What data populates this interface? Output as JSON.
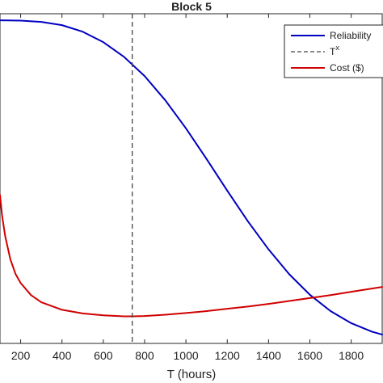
{
  "chart_data": {
    "type": "line",
    "title": "Block 5",
    "xlabel": "T (hours)",
    "ylabel": "",
    "xlim": [
      100,
      1950
    ],
    "x_ticks": [
      200,
      400,
      600,
      800,
      1000,
      1200,
      1400,
      1600,
      1800
    ],
    "grid": false,
    "legend_position": "top-right",
    "series": [
      {
        "name": "Reliability",
        "color": "#0000c0",
        "style": "solid",
        "x": [
          100,
          200,
          300,
          400,
          500,
          600,
          700,
          800,
          900,
          1000,
          1100,
          1200,
          1300,
          1400,
          1500,
          1600,
          1700,
          1800,
          1900,
          1950
        ],
        "y": [
          0.99,
          0.989,
          0.985,
          0.975,
          0.955,
          0.923,
          0.878,
          0.819,
          0.745,
          0.659,
          0.565,
          0.468,
          0.374,
          0.288,
          0.212,
          0.149,
          0.099,
          0.062,
          0.036,
          0.027
        ]
      },
      {
        "name": "Cost ($)",
        "color": "#d00000",
        "style": "solid",
        "x": [
          100,
          110,
          125,
          150,
          175,
          200,
          250,
          300,
          400,
          500,
          600,
          700,
          740,
          800,
          900,
          1000,
          1100,
          1200,
          1300,
          1400,
          1500,
          1600,
          1700,
          1800,
          1900,
          1950
        ],
        "y": [
          0.455,
          0.392,
          0.329,
          0.258,
          0.213,
          0.185,
          0.148,
          0.126,
          0.103,
          0.092,
          0.086,
          0.083,
          0.083,
          0.084,
          0.088,
          0.093,
          0.099,
          0.106,
          0.113,
          0.121,
          0.13,
          0.139,
          0.148,
          0.158,
          0.168,
          0.173
        ]
      }
    ],
    "vlines": [
      {
        "name": "T",
        "superscript": "x",
        "x": 740,
        "color": "#444444",
        "style": "dashed"
      }
    ],
    "legend": [
      {
        "label": "Reliability",
        "sup": "",
        "color": "#0000c0",
        "style": "solid"
      },
      {
        "label": "T",
        "sup": "x",
        "color": "#444444",
        "style": "dashed"
      },
      {
        "label": "Cost ($)",
        "sup": "",
        "color": "#d00000",
        "style": "solid"
      }
    ]
  }
}
